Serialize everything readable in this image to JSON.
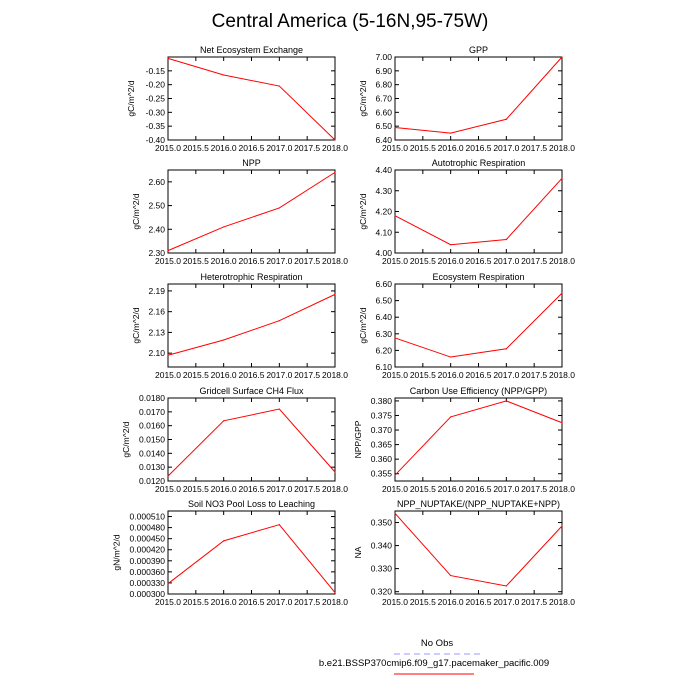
{
  "page_title": "Central America (5-16N,95-75W)",
  "colors": {
    "series": "#ff0000",
    "obs": "#9a9aff",
    "axis": "#000000"
  },
  "legend": {
    "obs_label": "No Obs",
    "model_label": "b.e21.BSSP370cmip6.f09_g17.pacemaker_pacific.009"
  },
  "chart_data": [
    {
      "type": "line",
      "title": "Net Ecosystem Exchange",
      "ylabel": "gC/m^2/d",
      "x": [
        2015.0,
        2016.0,
        2017.0,
        2018.0
      ],
      "values": [
        -0.105,
        -0.165,
        -0.205,
        -0.4
      ],
      "xlim": [
        2015.0,
        2018.0
      ],
      "ylim": [
        -0.4,
        -0.1
      ],
      "xticks": [
        "2015.0",
        "2015.5",
        "2016.0",
        "2016.5",
        "2017.0",
        "2017.5",
        "2018.0"
      ],
      "yticks": [
        {
          "v": -0.15,
          "label": "-0.15"
        },
        {
          "v": -0.2,
          "label": "-0.20"
        },
        {
          "v": -0.25,
          "label": "-0.25"
        },
        {
          "v": -0.3,
          "label": "-0.30"
        },
        {
          "v": -0.35,
          "label": "-0.35"
        },
        {
          "v": -0.4,
          "label": "-0.40"
        }
      ]
    },
    {
      "type": "line",
      "title": "GPP",
      "ylabel": "gC/m^2/d",
      "x": [
        2015.0,
        2016.0,
        2017.0,
        2018.0
      ],
      "values": [
        6.49,
        6.45,
        6.55,
        7.0
      ],
      "xlim": [
        2015.0,
        2018.0
      ],
      "ylim": [
        6.4,
        7.0
      ],
      "xticks": [
        "2015.0",
        "2015.5",
        "2016.0",
        "2016.5",
        "2017.0",
        "2017.5",
        "2018.0"
      ],
      "yticks": [
        {
          "v": 7.0,
          "label": "7.00"
        },
        {
          "v": 6.9,
          "label": "6.90"
        },
        {
          "v": 6.8,
          "label": "6.80"
        },
        {
          "v": 6.7,
          "label": "6.70"
        },
        {
          "v": 6.6,
          "label": "6.60"
        },
        {
          "v": 6.5,
          "label": "6.50"
        },
        {
          "v": 6.4,
          "label": "6.40"
        }
      ]
    },
    {
      "type": "line",
      "title": "NPP",
      "ylabel": "gC/m^2/d",
      "x": [
        2015.0,
        2016.0,
        2017.0,
        2018.0
      ],
      "values": [
        2.31,
        2.41,
        2.49,
        2.64
      ],
      "xlim": [
        2015.0,
        2018.0
      ],
      "ylim": [
        2.3,
        2.65
      ],
      "xticks": [
        "2015.0",
        "2015.5",
        "2016.0",
        "2016.5",
        "2017.0",
        "2017.5",
        "2018.0"
      ],
      "yticks": [
        {
          "v": 2.6,
          "label": "2.60"
        },
        {
          "v": 2.5,
          "label": "2.50"
        },
        {
          "v": 2.4,
          "label": "2.40"
        },
        {
          "v": 2.3,
          "label": "2.30"
        }
      ]
    },
    {
      "type": "line",
      "title": "Autotrophic Respiration",
      "ylabel": "gC/m^2/d",
      "x": [
        2015.0,
        2016.0,
        2017.0,
        2018.0
      ],
      "values": [
        4.18,
        4.04,
        4.065,
        4.36
      ],
      "xlim": [
        2015.0,
        2018.0
      ],
      "ylim": [
        4.0,
        4.4
      ],
      "xticks": [
        "2015.0",
        "2015.5",
        "2016.0",
        "2016.5",
        "2017.0",
        "2017.5",
        "2018.0"
      ],
      "yticks": [
        {
          "v": 4.4,
          "label": "4.40"
        },
        {
          "v": 4.3,
          "label": "4.30"
        },
        {
          "v": 4.2,
          "label": "4.20"
        },
        {
          "v": 4.1,
          "label": "4.10"
        },
        {
          "v": 4.0,
          "label": "4.00"
        }
      ]
    },
    {
      "type": "line",
      "title": "Heterotrophic Respiration",
      "ylabel": "gC/m^2/d",
      "x": [
        2015.0,
        2016.0,
        2017.0,
        2018.0
      ],
      "values": [
        2.097,
        2.119,
        2.147,
        2.185
      ],
      "xlim": [
        2015.0,
        2018.0
      ],
      "ylim": [
        2.08,
        2.2
      ],
      "xticks": [
        "2015.0",
        "2015.5",
        "2016.0",
        "2016.5",
        "2017.0",
        "2017.5",
        "2018.0"
      ],
      "yticks": [
        {
          "v": 2.19,
          "label": "2.19"
        },
        {
          "v": 2.16,
          "label": "2.16"
        },
        {
          "v": 2.13,
          "label": "2.13"
        },
        {
          "v": 2.1,
          "label": "2.10"
        }
      ]
    },
    {
      "type": "line",
      "title": "Ecosystem Respiration",
      "ylabel": "gC/m^2/d",
      "x": [
        2015.0,
        2016.0,
        2017.0,
        2018.0
      ],
      "values": [
        6.275,
        6.16,
        6.21,
        6.545
      ],
      "xlim": [
        2015.0,
        2018.0
      ],
      "ylim": [
        6.1,
        6.6
      ],
      "xticks": [
        "2015.0",
        "2015.5",
        "2016.0",
        "2016.5",
        "2017.0",
        "2017.5",
        "2018.0"
      ],
      "yticks": [
        {
          "v": 6.6,
          "label": "6.60"
        },
        {
          "v": 6.5,
          "label": "6.50"
        },
        {
          "v": 6.4,
          "label": "6.40"
        },
        {
          "v": 6.3,
          "label": "6.30"
        },
        {
          "v": 6.2,
          "label": "6.20"
        },
        {
          "v": 6.1,
          "label": "6.10"
        }
      ]
    },
    {
      "type": "line",
      "title": "Gridcell Surface CH4 Flux",
      "ylabel": "gC/m^2/d",
      "x": [
        2015.0,
        2016.0,
        2017.0,
        2018.0
      ],
      "values": [
        0.01235,
        0.01635,
        0.0172,
        0.01265
      ],
      "xlim": [
        2015.0,
        2018.0
      ],
      "ylim": [
        0.012,
        0.018
      ],
      "xticks": [
        "2015.0",
        "2015.5",
        "2016.0",
        "2016.5",
        "2017.0",
        "2017.5",
        "2018.0"
      ],
      "yticks": [
        {
          "v": 0.018,
          "label": "0.0180"
        },
        {
          "v": 0.017,
          "label": "0.0170"
        },
        {
          "v": 0.016,
          "label": "0.0160"
        },
        {
          "v": 0.015,
          "label": "0.0150"
        },
        {
          "v": 0.014,
          "label": "0.0140"
        },
        {
          "v": 0.013,
          "label": "0.0130"
        },
        {
          "v": 0.012,
          "label": "0.0120"
        }
      ]
    },
    {
      "type": "line",
      "title": "Carbon Use Efficiency (NPP/GPP)",
      "ylabel": "NPP/GPP",
      "x": [
        2015.0,
        2016.0,
        2017.0,
        2018.0
      ],
      "values": [
        0.3545,
        0.3745,
        0.38,
        0.3725
      ],
      "xlim": [
        2015.0,
        2018.0
      ],
      "ylim": [
        0.3525,
        0.381
      ],
      "xticks": [
        "2015.0",
        "2015.5",
        "2016.0",
        "2016.5",
        "2017.0",
        "2017.5",
        "2018.0"
      ],
      "yticks": [
        {
          "v": 0.38,
          "label": "0.380"
        },
        {
          "v": 0.375,
          "label": "0.375"
        },
        {
          "v": 0.37,
          "label": "0.370"
        },
        {
          "v": 0.365,
          "label": "0.365"
        },
        {
          "v": 0.36,
          "label": "0.360"
        },
        {
          "v": 0.355,
          "label": "0.355"
        }
      ]
    },
    {
      "type": "line",
      "title": "Soil NO3 Pool Loss to Leaching",
      "ylabel": "gN/m^2/d",
      "x": [
        2015.0,
        2016.0,
        2017.0,
        2018.0
      ],
      "values": [
        0.000328,
        0.000444,
        0.000488,
        0.000304
      ],
      "xlim": [
        2015.0,
        2018.0
      ],
      "ylim": [
        0.0003,
        0.000525
      ],
      "xticks": [
        "2015.0",
        "2015.5",
        "2016.0",
        "2016.5",
        "2017.0",
        "2017.5",
        "2018.0"
      ],
      "yticks": [
        {
          "v": 0.00051,
          "label": "0.000510"
        },
        {
          "v": 0.00048,
          "label": "0.000480"
        },
        {
          "v": 0.00045,
          "label": "0.000450"
        },
        {
          "v": 0.00042,
          "label": "0.000420"
        },
        {
          "v": 0.00039,
          "label": "0.000390"
        },
        {
          "v": 0.00036,
          "label": "0.000360"
        },
        {
          "v": 0.00033,
          "label": "0.000330"
        },
        {
          "v": 0.0003,
          "label": "0.000300"
        }
      ]
    },
    {
      "type": "line",
      "title": "NPP_NUPTAKE/(NPP_NUPTAKE+NPP)",
      "ylabel": "NA",
      "x": [
        2015.0,
        2016.0,
        2017.0,
        2018.0
      ],
      "values": [
        0.354,
        0.327,
        0.3225,
        0.3485
      ],
      "xlim": [
        2015.0,
        2018.0
      ],
      "ylim": [
        0.319,
        0.355
      ],
      "xticks": [
        "2015.0",
        "2015.5",
        "2016.0",
        "2016.5",
        "2017.0",
        "2017.5",
        "2018.0"
      ],
      "yticks": [
        {
          "v": 0.35,
          "label": "0.350"
        },
        {
          "v": 0.34,
          "label": "0.340"
        },
        {
          "v": 0.33,
          "label": "0.330"
        },
        {
          "v": 0.32,
          "label": "0.320"
        }
      ]
    }
  ]
}
